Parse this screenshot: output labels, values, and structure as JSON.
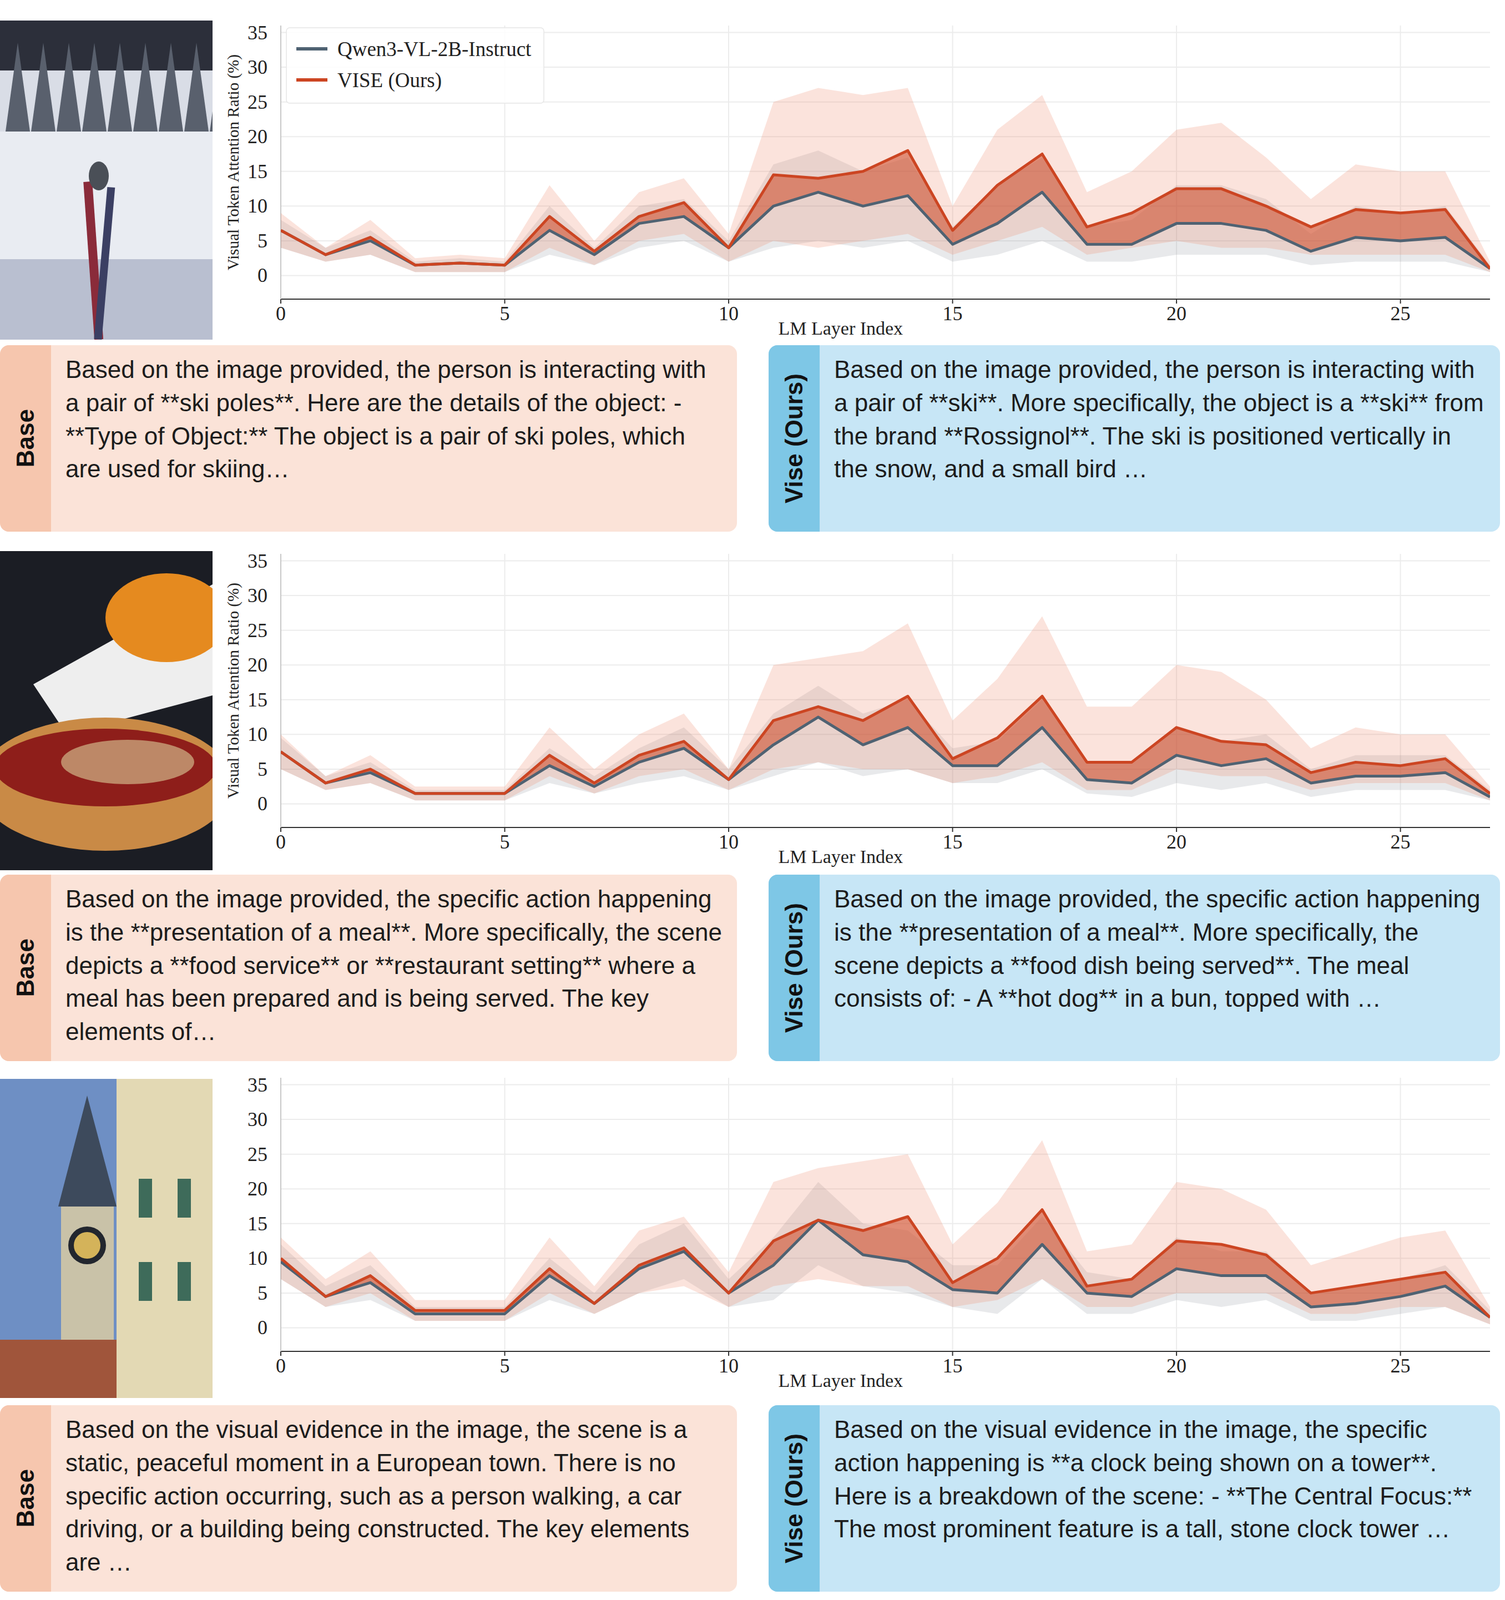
{
  "chart_data": [
    {
      "type": "line",
      "x": [
        0,
        1,
        2,
        3,
        4,
        5,
        6,
        7,
        8,
        9,
        10,
        11,
        12,
        13,
        14,
        15,
        16,
        17,
        18,
        19,
        20,
        21,
        22,
        23,
        24,
        25,
        26,
        27
      ],
      "xlim": [
        0,
        27
      ],
      "xticks": [
        0,
        5,
        10,
        15,
        20,
        25
      ],
      "ylim": [
        -3.4,
        36
      ],
      "yticks": [
        0,
        5,
        10,
        15,
        20,
        25,
        30,
        35
      ],
      "x_label": "LM Layer Index",
      "y_label": "Visual Token Attention Ratio (%)",
      "grid": true,
      "legend": "upper left",
      "series": [
        {
          "name": "Qwen3-VL-2B-Instruct",
          "color": "#4f6272",
          "values": [
            6.5,
            3,
            5,
            1.5,
            1.8,
            1.5,
            6.5,
            3,
            7.5,
            8.5,
            4,
            10,
            12,
            10,
            11.5,
            4.5,
            7.5,
            12,
            4.5,
            4.5,
            7.5,
            7.5,
            6.5,
            3.5,
            5.5,
            5,
            5.5,
            1
          ],
          "band_low": [
            4,
            2,
            3,
            0.5,
            0.5,
            0.5,
            3,
            1.5,
            4,
            5,
            2,
            4,
            5,
            4,
            5,
            2,
            3,
            5,
            2,
            2,
            3,
            3,
            3,
            1.5,
            2,
            2,
            2,
            0.5
          ],
          "band_high": [
            8,
            4,
            6.5,
            2,
            2.5,
            2,
            10,
            4,
            10,
            11,
            5,
            16,
            18,
            15,
            17,
            7,
            13,
            17,
            7,
            8,
            13,
            13,
            11,
            6,
            10,
            9,
            10,
            1.5
          ]
        },
        {
          "name": "VISE (Ours)",
          "color": "#cc4522",
          "values": [
            6.5,
            3,
            5.5,
            1.5,
            1.8,
            1.5,
            8.5,
            3.5,
            8.5,
            10.5,
            4,
            14.5,
            14,
            15,
            18,
            6.5,
            13,
            17.5,
            7,
            9,
            12.5,
            12.5,
            10,
            7,
            9.5,
            9,
            9.5,
            1
          ],
          "band_low": [
            4,
            2,
            3,
            0.5,
            0.5,
            0.5,
            4,
            1.5,
            5,
            6,
            2,
            5,
            4,
            5,
            6,
            3,
            5,
            7,
            3,
            4,
            5,
            4,
            4,
            3,
            3,
            3,
            3,
            0.5
          ],
          "band_high": [
            9,
            4,
            8,
            2.5,
            3,
            2.5,
            13,
            5,
            12,
            14,
            6,
            25,
            27,
            26,
            27,
            10,
            21,
            26,
            12,
            15,
            21,
            22,
            17,
            11,
            16,
            15,
            15,
            2
          ]
        }
      ]
    },
    {
      "type": "line",
      "x": [
        0,
        1,
        2,
        3,
        4,
        5,
        6,
        7,
        8,
        9,
        10,
        11,
        12,
        13,
        14,
        15,
        16,
        17,
        18,
        19,
        20,
        21,
        22,
        23,
        24,
        25,
        26,
        27
      ],
      "xlim": [
        0,
        27
      ],
      "xticks": [
        0,
        5,
        10,
        15,
        20,
        25
      ],
      "ylim": [
        -3.4,
        36
      ],
      "yticks": [
        0,
        5,
        10,
        15,
        20,
        25,
        30,
        35
      ],
      "x_label": "LM Layer Index",
      "y_label": "Visual Token Attention Ratio (%)",
      "grid": true,
      "series": [
        {
          "color": "#4f6272",
          "values": [
            7.5,
            3,
            4.5,
            1.5,
            1.5,
            1.5,
            5.5,
            2.5,
            6,
            8,
            3.5,
            8.5,
            12.5,
            8.5,
            11,
            5.5,
            5.5,
            11,
            3.5,
            3,
            7,
            5.5,
            6.5,
            3,
            4,
            4,
            4.5,
            1
          ],
          "band_low": [
            5,
            2,
            3,
            0.5,
            0.5,
            0.5,
            3,
            1.5,
            3,
            4,
            2,
            4,
            6,
            4,
            5,
            3,
            3,
            5,
            1.5,
            1,
            3,
            2,
            3,
            1,
            2,
            2,
            2,
            0.5
          ],
          "band_high": [
            9.5,
            4,
            6,
            2,
            2,
            2,
            8,
            4,
            8,
            11,
            5,
            13,
            17,
            13,
            15,
            8,
            9,
            15,
            6,
            6,
            11,
            9,
            10,
            5,
            7,
            7,
            7,
            2
          ]
        },
        {
          "color": "#cc4522",
          "values": [
            7.5,
            3,
            5,
            1.5,
            1.5,
            1.5,
            7,
            3,
            7,
            9,
            3.5,
            12,
            14,
            12,
            15.5,
            6.5,
            9.5,
            15.5,
            6,
            6,
            11,
            9,
            8.5,
            4.5,
            6,
            5.5,
            6.5,
            1.5
          ],
          "band_low": [
            5,
            2,
            3,
            0.5,
            0.5,
            0.5,
            4,
            1.5,
            4,
            5,
            2,
            5,
            6,
            5,
            5,
            3,
            4,
            6,
            2,
            2,
            5,
            4,
            4,
            2,
            3,
            3,
            3,
            0.5
          ],
          "band_high": [
            10,
            4,
            7,
            2.5,
            2.5,
            2.5,
            11,
            5,
            10,
            13,
            5,
            20,
            21,
            22,
            26,
            12,
            18,
            27,
            14,
            14,
            20,
            19,
            15,
            8,
            11,
            10,
            10,
            2.5
          ]
        }
      ]
    },
    {
      "type": "line",
      "x": [
        0,
        1,
        2,
        3,
        4,
        5,
        6,
        7,
        8,
        9,
        10,
        11,
        12,
        13,
        14,
        15,
        16,
        17,
        18,
        19,
        20,
        21,
        22,
        23,
        24,
        25,
        26,
        27
      ],
      "xlim": [
        0,
        27
      ],
      "xticks": [
        0,
        5,
        10,
        15,
        20,
        25
      ],
      "ylim": [
        -3.4,
        36
      ],
      "yticks": [
        0,
        5,
        10,
        15,
        20,
        25,
        30,
        35
      ],
      "x_label": "LM Layer Index",
      "grid": true,
      "series": [
        {
          "color": "#4f6272",
          "values": [
            9.5,
            4.5,
            6.5,
            2,
            2,
            2,
            7.5,
            3.5,
            8.5,
            11,
            5,
            9,
            15.5,
            10.5,
            9.5,
            5.5,
            5,
            12,
            5,
            4.5,
            8.5,
            7.5,
            7.5,
            3,
            3.5,
            4.5,
            6,
            1.5
          ],
          "band_low": [
            7,
            3,
            4,
            1,
            1,
            1,
            4,
            2,
            5,
            7,
            3,
            4,
            9,
            6,
            5,
            3,
            2,
            7,
            2,
            2,
            4,
            3,
            4,
            1,
            1,
            2,
            3,
            0.5
          ],
          "band_high": [
            12,
            6,
            9,
            3,
            3,
            3,
            10,
            5,
            12,
            15,
            7,
            13,
            21,
            15,
            14,
            9,
            9,
            16,
            8,
            7,
            13,
            11,
            11,
            5,
            6,
            7,
            9,
            2.5
          ]
        },
        {
          "color": "#cc4522",
          "values": [
            10,
            4.5,
            7.5,
            2.5,
            2.5,
            2.5,
            8.5,
            3.5,
            9,
            11.5,
            5,
            12.5,
            15.5,
            14,
            16,
            6.5,
            10,
            17,
            6,
            7,
            12.5,
            12,
            10.5,
            5,
            6,
            7,
            8,
            1.5
          ],
          "band_low": [
            7,
            3,
            5,
            1,
            1,
            1,
            5,
            2,
            5,
            6,
            3,
            6,
            7,
            6,
            6,
            3,
            4,
            7,
            3,
            3,
            5,
            5,
            5,
            2,
            2,
            3,
            3,
            0.5
          ],
          "band_high": [
            13,
            7,
            11,
            4,
            4,
            4,
            13,
            6,
            14,
            16,
            8,
            21,
            23,
            24,
            25,
            12,
            18,
            27,
            11,
            12,
            21,
            20,
            17,
            9,
            11,
            13,
            14,
            3
          ]
        }
      ]
    }
  ],
  "responses": [
    {
      "base": {
        "label": "Base",
        "text": "Based on the image provided, the person is interacting with a pair of **ski poles**. Here are the details of the object: - **Type of Object:** The object is a pair of ski poles, which are used for skiing…"
      },
      "vise": {
        "label": "Vise (Ours)",
        "text": "Based on the image provided, the person is interacting with a pair of **ski**. More specifically, the object is a **ski** from the brand **Rossignol**. The ski is positioned vertically in the snow, and a small bird …"
      }
    },
    {
      "base": {
        "label": "Base",
        "text": "Based on the image provided, the specific action happening is the **presentation of a meal**. More specifically, the scene depicts a **food service** or **restaurant setting** where a meal has been prepared and is being served. The key elements of…"
      },
      "vise": {
        "label": "Vise (Ours)",
        "text": "Based on the image provided, the specific action happening is the **presentation of a meal**. More specifically, the scene depicts a **food dish being served**. The meal consists of: - A **hot dog** in a bun, topped with …"
      }
    },
    {
      "base": {
        "label": "Base",
        "text": "Based on the visual evidence in the image, the scene is a static, peaceful moment in a European town. There is no specific action occurring, such as a person walking, a car driving, or a building being constructed. The key elements are …"
      },
      "vise": {
        "label": "Vise (Ours)",
        "text": "Based on the visual evidence in the image, the specific action happening is **a clock being shown on a tower**. Here is a breakdown of the scene: - **The Central Focus:** The most prominent feature is a tall, stone clock tower …"
      }
    }
  ]
}
